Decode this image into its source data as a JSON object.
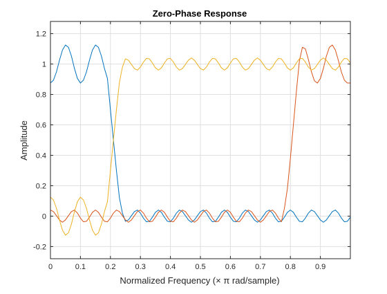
{
  "chart_data": {
    "type": "line",
    "title": "Zero-Phase Response",
    "xlabel": "Normalized  Frequency    (× π  rad/sample)",
    "ylabel": "Amplitude",
    "xlim": [
      0,
      1
    ],
    "ylim": [
      -0.28,
      1.28
    ],
    "xticks": [
      0,
      0.1,
      0.2,
      0.3,
      0.4,
      0.5,
      0.6,
      0.7,
      0.8,
      0.9
    ],
    "xtick_labels": [
      "0",
      "0.1",
      "0.2",
      "0.3",
      "0.4",
      "0.5",
      "0.6",
      "0.7",
      "0.8",
      "0.9"
    ],
    "yticks": [
      -0.2,
      0,
      0.2,
      0.4,
      0.6,
      0.8,
      1,
      1.2
    ],
    "ytick_labels": [
      "-0.2",
      "0",
      "0.2",
      "0.4",
      "0.6",
      "0.8",
      "1",
      "1.2"
    ],
    "grid": true,
    "series": [
      {
        "color": "#0072BD",
        "x": [
          0,
          0.01,
          0.02,
          0.03,
          0.04,
          0.05,
          0.06,
          0.07,
          0.08,
          0.09,
          0.1,
          0.11,
          0.12,
          0.13,
          0.14,
          0.15,
          0.16,
          0.17,
          0.18,
          0.19,
          0.2,
          0.21,
          0.22,
          0.23,
          0.24,
          0.25,
          0.26,
          0.27,
          0.28,
          0.29,
          0.3,
          0.31,
          0.32,
          0.33,
          0.34,
          0.35,
          0.36,
          0.37,
          0.38,
          0.39,
          0.4,
          0.41,
          0.42,
          0.43,
          0.44,
          0.45,
          0.46,
          0.47,
          0.48,
          0.49,
          0.5,
          0.51,
          0.52,
          0.53,
          0.54,
          0.55,
          0.56,
          0.57,
          0.58,
          0.59,
          0.6,
          0.61,
          0.62,
          0.63,
          0.64,
          0.65,
          0.66,
          0.67,
          0.68,
          0.69,
          0.7,
          0.71,
          0.72,
          0.73,
          0.74,
          0.75,
          0.76,
          0.77,
          0.78,
          0.79,
          0.8,
          0.81,
          0.82,
          0.83,
          0.84,
          0.85,
          0.86,
          0.87,
          0.88,
          0.89,
          0.9,
          0.91,
          0.92,
          0.93,
          0.94,
          0.95,
          0.96,
          0.97,
          0.98,
          0.99,
          1
        ],
        "y": [
          0.875,
          0.894,
          0.948,
          1.024,
          1.092,
          1.125,
          1.11,
          1.052,
          0.971,
          0.905,
          0.875,
          0.894,
          0.948,
          1.024,
          1.092,
          1.125,
          1.11,
          1.052,
          0.971,
          0.905,
          0.7,
          0.5,
          0.3,
          0.12,
          0.02,
          -0.034,
          -0.025,
          0.003,
          0.03,
          0.04,
          0.02,
          -0.013,
          -0.037,
          -0.034,
          -0.007,
          0.025,
          0.04,
          0.025,
          -0.007,
          -0.034,
          -0.037,
          -0.013,
          0.02,
          0.04,
          0.03,
          0.003,
          -0.025,
          -0.04,
          -0.025,
          0.003,
          0.03,
          0.04,
          0.02,
          -0.013,
          -0.037,
          -0.034,
          -0.007,
          0.025,
          0.04,
          0.025,
          -0.007,
          -0.034,
          -0.037,
          -0.013,
          0.02,
          0.04,
          0.03,
          0.003,
          -0.025,
          -0.04,
          -0.025,
          0.003,
          0.03,
          0.04,
          0.02,
          -0.013,
          -0.037,
          -0.034,
          -0.007,
          0.025,
          0.04,
          0.025,
          -0.007,
          -0.034,
          -0.037,
          -0.013,
          0.02,
          0.04,
          0.03,
          0.003,
          -0.025,
          -0.04,
          -0.025,
          0.003,
          0.03,
          0.04,
          0.02,
          -0.013,
          -0.037,
          -0.034,
          -0.007
        ]
      },
      {
        "color": "#D95319",
        "x": [
          0,
          0.01,
          0.02,
          0.03,
          0.04,
          0.05,
          0.06,
          0.07,
          0.08,
          0.09,
          0.1,
          0.11,
          0.12,
          0.13,
          0.14,
          0.15,
          0.16,
          0.17,
          0.18,
          0.19,
          0.2,
          0.21,
          0.22,
          0.23,
          0.24,
          0.25,
          0.26,
          0.27,
          0.28,
          0.29,
          0.3,
          0.31,
          0.32,
          0.33,
          0.34,
          0.35,
          0.36,
          0.37,
          0.38,
          0.39,
          0.4,
          0.41,
          0.42,
          0.43,
          0.44,
          0.45,
          0.46,
          0.47,
          0.48,
          0.49,
          0.5,
          0.51,
          0.52,
          0.53,
          0.54,
          0.55,
          0.56,
          0.57,
          0.58,
          0.59,
          0.6,
          0.61,
          0.62,
          0.63,
          0.64,
          0.65,
          0.66,
          0.67,
          0.68,
          0.69,
          0.7,
          0.71,
          0.72,
          0.73,
          0.74,
          0.75,
          0.76,
          0.77,
          0.78,
          0.79,
          0.8,
          0.81,
          0.82,
          0.83,
          0.84,
          0.85,
          0.86,
          0.87,
          0.88,
          0.89,
          0.9,
          0.91,
          0.92,
          0.93,
          0.94,
          0.95,
          0.96,
          0.97,
          0.98,
          0.99,
          1
        ],
        "y": [
          0.04,
          0.03,
          0.003,
          -0.025,
          -0.04,
          -0.025,
          0.003,
          0.03,
          0.04,
          0.02,
          -0.013,
          -0.037,
          -0.034,
          -0.007,
          0.025,
          0.04,
          0.025,
          -0.007,
          -0.034,
          -0.037,
          -0.013,
          0.02,
          0.04,
          0.03,
          0.003,
          -0.025,
          -0.04,
          -0.025,
          0.003,
          0.03,
          0.04,
          0.02,
          -0.013,
          -0.037,
          -0.034,
          -0.007,
          0.025,
          0.04,
          0.025,
          -0.007,
          -0.034,
          -0.037,
          -0.013,
          0.02,
          0.04,
          0.03,
          0.003,
          -0.025,
          -0.04,
          -0.025,
          0.003,
          0.03,
          0.04,
          0.02,
          -0.013,
          -0.037,
          -0.034,
          -0.007,
          0.025,
          0.04,
          0.025,
          -0.007,
          -0.034,
          -0.037,
          -0.013,
          0.02,
          0.04,
          0.03,
          0.003,
          -0.025,
          -0.04,
          -0.025,
          0.003,
          0.03,
          0.04,
          0.02,
          -0.013,
          -0.037,
          0.05,
          0.18,
          0.38,
          0.6,
          0.82,
          1.02,
          1.11,
          1.1,
          1.03,
          0.95,
          0.89,
          0.875,
          0.905,
          0.971,
          1.052,
          1.11,
          1.125,
          1.092,
          1.024,
          0.948,
          0.894,
          0.875,
          0.875
        ]
      },
      {
        "color": "#EDB120",
        "x": [
          0,
          0.01,
          0.02,
          0.03,
          0.04,
          0.05,
          0.06,
          0.07,
          0.08,
          0.09,
          0.1,
          0.11,
          0.12,
          0.13,
          0.14,
          0.15,
          0.16,
          0.17,
          0.18,
          0.19,
          0.2,
          0.21,
          0.22,
          0.23,
          0.24,
          0.25,
          0.26,
          0.27,
          0.28,
          0.29,
          0.3,
          0.31,
          0.32,
          0.33,
          0.34,
          0.35,
          0.36,
          0.37,
          0.38,
          0.39,
          0.4,
          0.41,
          0.42,
          0.43,
          0.44,
          0.45,
          0.46,
          0.47,
          0.48,
          0.49,
          0.5,
          0.51,
          0.52,
          0.53,
          0.54,
          0.55,
          0.56,
          0.57,
          0.58,
          0.59,
          0.6,
          0.61,
          0.62,
          0.63,
          0.64,
          0.65,
          0.66,
          0.67,
          0.68,
          0.69,
          0.7,
          0.71,
          0.72,
          0.73,
          0.74,
          0.75,
          0.76,
          0.77,
          0.78,
          0.79,
          0.8,
          0.81,
          0.82,
          0.83,
          0.84,
          0.85,
          0.86,
          0.87,
          0.88,
          0.89,
          0.9,
          0.91,
          0.92,
          0.93,
          0.94,
          0.95,
          0.96,
          0.97,
          0.98,
          0.99,
          1
        ],
        "y": [
          0.125,
          0.106,
          0.052,
          -0.024,
          -0.092,
          -0.125,
          -0.11,
          -0.052,
          0.029,
          0.095,
          0.125,
          0.106,
          0.052,
          -0.024,
          -0.092,
          -0.125,
          -0.11,
          -0.052,
          0.029,
          0.095,
          0.3,
          0.5,
          0.7,
          0.88,
          0.98,
          1.034,
          1.025,
          0.997,
          0.97,
          0.96,
          0.98,
          1.013,
          1.037,
          1.034,
          1.007,
          0.975,
          0.96,
          0.975,
          1.007,
          1.034,
          1.037,
          1.013,
          0.98,
          0.96,
          0.97,
          0.997,
          1.025,
          1.04,
          1.025,
          0.997,
          0.97,
          0.96,
          0.98,
          1.013,
          1.037,
          1.034,
          1.007,
          0.975,
          0.96,
          0.975,
          1.007,
          1.034,
          1.037,
          1.013,
          0.98,
          0.96,
          0.97,
          0.997,
          1.025,
          1.04,
          1.025,
          0.997,
          0.97,
          0.96,
          0.98,
          1.013,
          1.037,
          1.034,
          1.007,
          0.975,
          0.96,
          0.975,
          1.007,
          1.034,
          1.037,
          1.013,
          0.98,
          0.96,
          0.97,
          0.997,
          1.025,
          1.04,
          1.025,
          0.997,
          0.97,
          0.96,
          0.98,
          1.013,
          1.037,
          1.034,
          1.007
        ]
      }
    ]
  }
}
